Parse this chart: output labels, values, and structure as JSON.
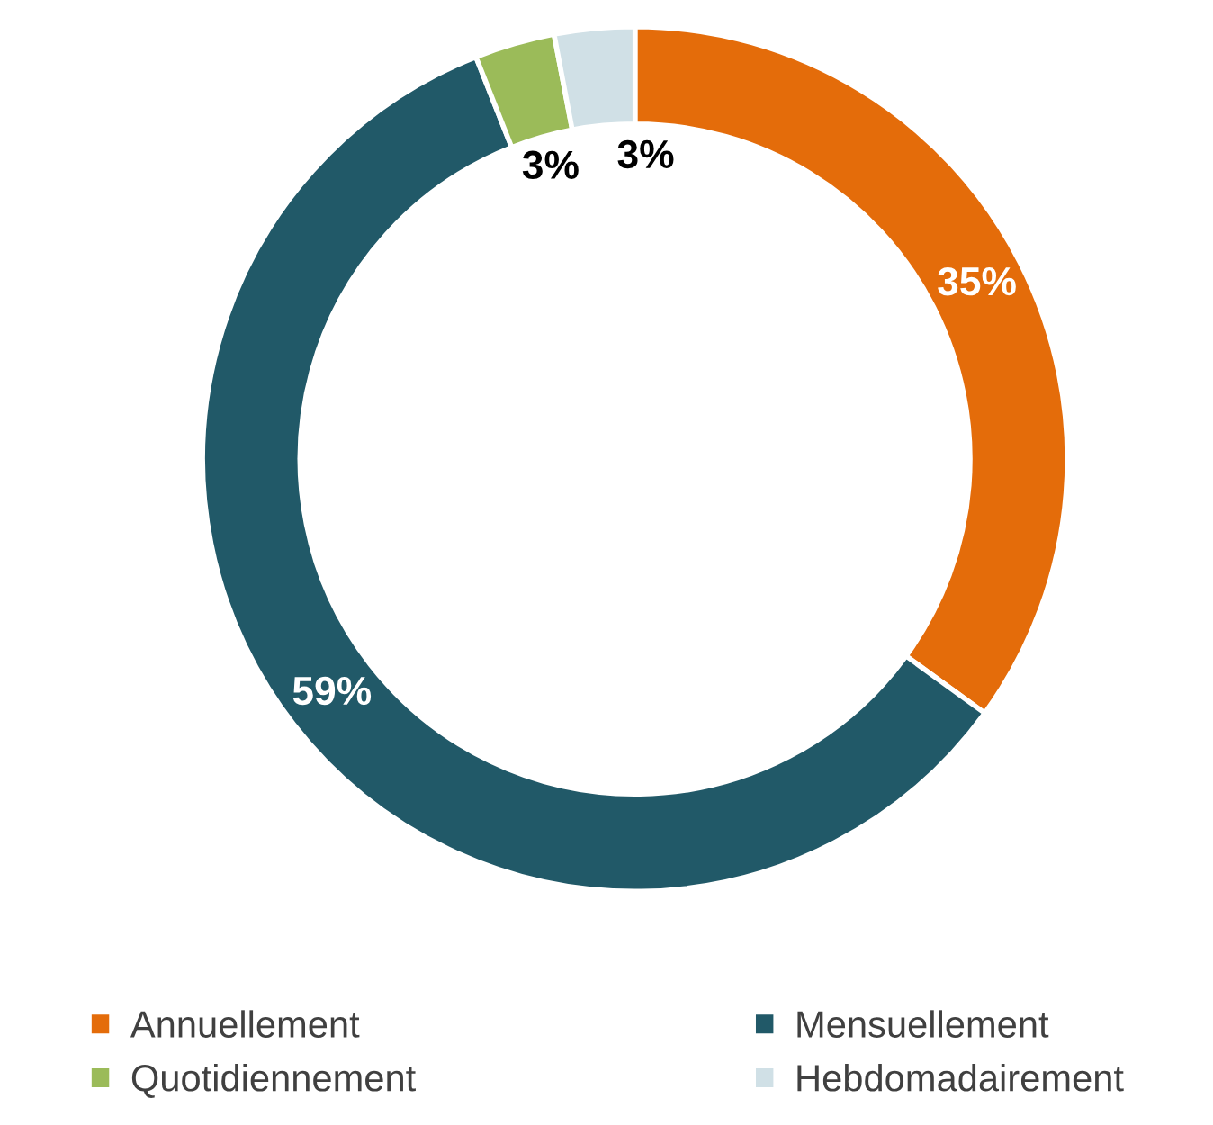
{
  "chart_data": {
    "type": "donut",
    "categories": [
      "Annuellement",
      "Mensuellement",
      "Quotidiennement",
      "Hebdomadairement"
    ],
    "values": [
      35,
      59,
      3,
      3
    ],
    "colors": [
      "#e46c0a",
      "#215968",
      "#9bbb59",
      "#d0e0e6"
    ],
    "value_labels": [
      "35%",
      "59%",
      "3%",
      "3%"
    ],
    "legend": "bottom"
  }
}
